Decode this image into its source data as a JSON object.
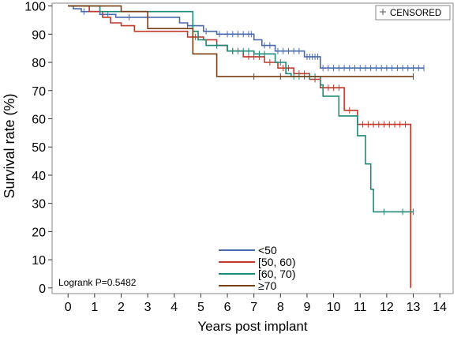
{
  "chart_data": {
    "type": "line",
    "style": "step",
    "xlabel": "Years post implant",
    "ylabel": "Survival rate (%)",
    "xlim": [
      -0.6,
      14.5
    ],
    "ylim": [
      -2,
      101
    ],
    "xticks": [
      0,
      1,
      2,
      3,
      4,
      5,
      6,
      7,
      8,
      9,
      10,
      11,
      12,
      13,
      14
    ],
    "yticks": [
      0,
      10,
      20,
      30,
      40,
      50,
      60,
      70,
      80,
      90,
      100
    ],
    "grid": false,
    "legend_position": "bottom-center",
    "censored_label": "CENSORED",
    "censored_legend_position": "top-right",
    "annotation": "Logrank P=0.5482",
    "series": [
      {
        "name": "<50",
        "color": "#4a6aae",
        "points": [
          [
            0,
            100
          ],
          [
            0.2,
            99
          ],
          [
            0.5,
            98
          ],
          [
            1.2,
            97
          ],
          [
            1.8,
            96
          ],
          [
            4.2,
            94
          ],
          [
            4.5,
            93
          ],
          [
            5.1,
            91
          ],
          [
            5.6,
            90
          ],
          [
            7.0,
            88
          ],
          [
            7.3,
            86
          ],
          [
            7.8,
            84
          ],
          [
            8.9,
            82
          ],
          [
            9.5,
            78
          ],
          [
            13.4,
            78
          ]
        ],
        "censored": [
          [
            0.6,
            98
          ],
          [
            1.5,
            97
          ],
          [
            2.3,
            96
          ],
          [
            3.0,
            96
          ],
          [
            4.5,
            93
          ],
          [
            5.2,
            91
          ],
          [
            5.7,
            90
          ],
          [
            6.0,
            90
          ],
          [
            6.2,
            90
          ],
          [
            6.4,
            90
          ],
          [
            6.6,
            90
          ],
          [
            6.8,
            90
          ],
          [
            6.9,
            90
          ],
          [
            7.4,
            86
          ],
          [
            7.6,
            86
          ],
          [
            7.9,
            84
          ],
          [
            8.1,
            84
          ],
          [
            8.3,
            84
          ],
          [
            8.5,
            84
          ],
          [
            8.7,
            84
          ],
          [
            9.0,
            82
          ],
          [
            9.1,
            82
          ],
          [
            9.2,
            82
          ],
          [
            9.3,
            82
          ],
          [
            9.4,
            82
          ],
          [
            9.6,
            78
          ],
          [
            9.8,
            78
          ],
          [
            10.0,
            78
          ],
          [
            10.2,
            78
          ],
          [
            10.4,
            78
          ],
          [
            10.6,
            78
          ],
          [
            10.8,
            78
          ],
          [
            11.0,
            78
          ],
          [
            11.2,
            78
          ],
          [
            11.4,
            78
          ],
          [
            11.6,
            78
          ],
          [
            11.8,
            78
          ],
          [
            12.0,
            78
          ],
          [
            12.2,
            78
          ],
          [
            12.4,
            78
          ],
          [
            12.6,
            78
          ],
          [
            12.8,
            78
          ],
          [
            13.0,
            78
          ],
          [
            13.2,
            78
          ],
          [
            13.4,
            78
          ]
        ]
      },
      {
        "name": "[50, 60)",
        "color": "#c0392b",
        "points": [
          [
            0,
            100
          ],
          [
            0.8,
            98
          ],
          [
            1.3,
            96
          ],
          [
            1.6,
            94
          ],
          [
            2.0,
            93
          ],
          [
            2.5,
            91
          ],
          [
            4.5,
            89
          ],
          [
            5.1,
            88
          ],
          [
            5.6,
            86
          ],
          [
            6.0,
            84
          ],
          [
            6.6,
            82
          ],
          [
            7.4,
            80
          ],
          [
            7.9,
            78
          ],
          [
            8.5,
            76
          ],
          [
            9.1,
            74
          ],
          [
            9.5,
            71
          ],
          [
            10.4,
            63
          ],
          [
            10.9,
            58
          ],
          [
            12.9,
            58
          ],
          [
            12.9,
            0
          ]
        ],
        "censored": [
          [
            4.8,
            89
          ],
          [
            5.6,
            86
          ],
          [
            6.2,
            84
          ],
          [
            6.8,
            82
          ],
          [
            7.0,
            82
          ],
          [
            7.2,
            82
          ],
          [
            7.6,
            80
          ],
          [
            8.1,
            78
          ],
          [
            8.3,
            78
          ],
          [
            8.7,
            76
          ],
          [
            8.9,
            76
          ],
          [
            9.3,
            74
          ],
          [
            9.6,
            71
          ],
          [
            9.8,
            71
          ],
          [
            10.0,
            71
          ],
          [
            10.2,
            71
          ],
          [
            10.6,
            63
          ],
          [
            11.1,
            58
          ],
          [
            11.3,
            58
          ],
          [
            11.5,
            58
          ],
          [
            11.7,
            58
          ],
          [
            11.9,
            58
          ],
          [
            12.1,
            58
          ],
          [
            12.3,
            58
          ],
          [
            12.5,
            58
          ],
          [
            12.7,
            58
          ]
        ]
      },
      {
        "name": "[60, 70)",
        "color": "#1f8a78",
        "points": [
          [
            0,
            100
          ],
          [
            1.2,
            98
          ],
          [
            4.7,
            91
          ],
          [
            4.9,
            88
          ],
          [
            5.2,
            86
          ],
          [
            6.0,
            84
          ],
          [
            7.0,
            83
          ],
          [
            7.8,
            80
          ],
          [
            8.2,
            76
          ],
          [
            8.4,
            75
          ],
          [
            9.5,
            72
          ],
          [
            9.6,
            68
          ],
          [
            10.2,
            61
          ],
          [
            10.9,
            54
          ],
          [
            11.2,
            44
          ],
          [
            11.4,
            35
          ],
          [
            11.5,
            27
          ],
          [
            13.0,
            27
          ]
        ],
        "censored": [
          [
            5.6,
            86
          ],
          [
            6.2,
            84
          ],
          [
            6.4,
            84
          ],
          [
            6.6,
            84
          ],
          [
            6.8,
            84
          ],
          [
            7.2,
            83
          ],
          [
            7.4,
            83
          ],
          [
            8.0,
            80
          ],
          [
            8.5,
            75
          ],
          [
            8.7,
            75
          ],
          [
            8.9,
            75
          ],
          [
            9.1,
            75
          ],
          [
            9.3,
            75
          ],
          [
            11.9,
            27
          ],
          [
            12.6,
            27
          ],
          [
            13.0,
            27
          ]
        ]
      },
      {
        "name": "≥70",
        "color": "#7a3f12",
        "points": [
          [
            0,
            100
          ],
          [
            2.0,
            100
          ],
          [
            2.0,
            98
          ],
          [
            3.0,
            98
          ],
          [
            3.0,
            92
          ],
          [
            4.7,
            92
          ],
          [
            4.7,
            83
          ],
          [
            5.6,
            83
          ],
          [
            5.6,
            75
          ],
          [
            13.0,
            75
          ]
        ],
        "censored": [
          [
            7.0,
            75
          ],
          [
            8.0,
            75
          ],
          [
            13.0,
            75
          ]
        ]
      }
    ]
  }
}
